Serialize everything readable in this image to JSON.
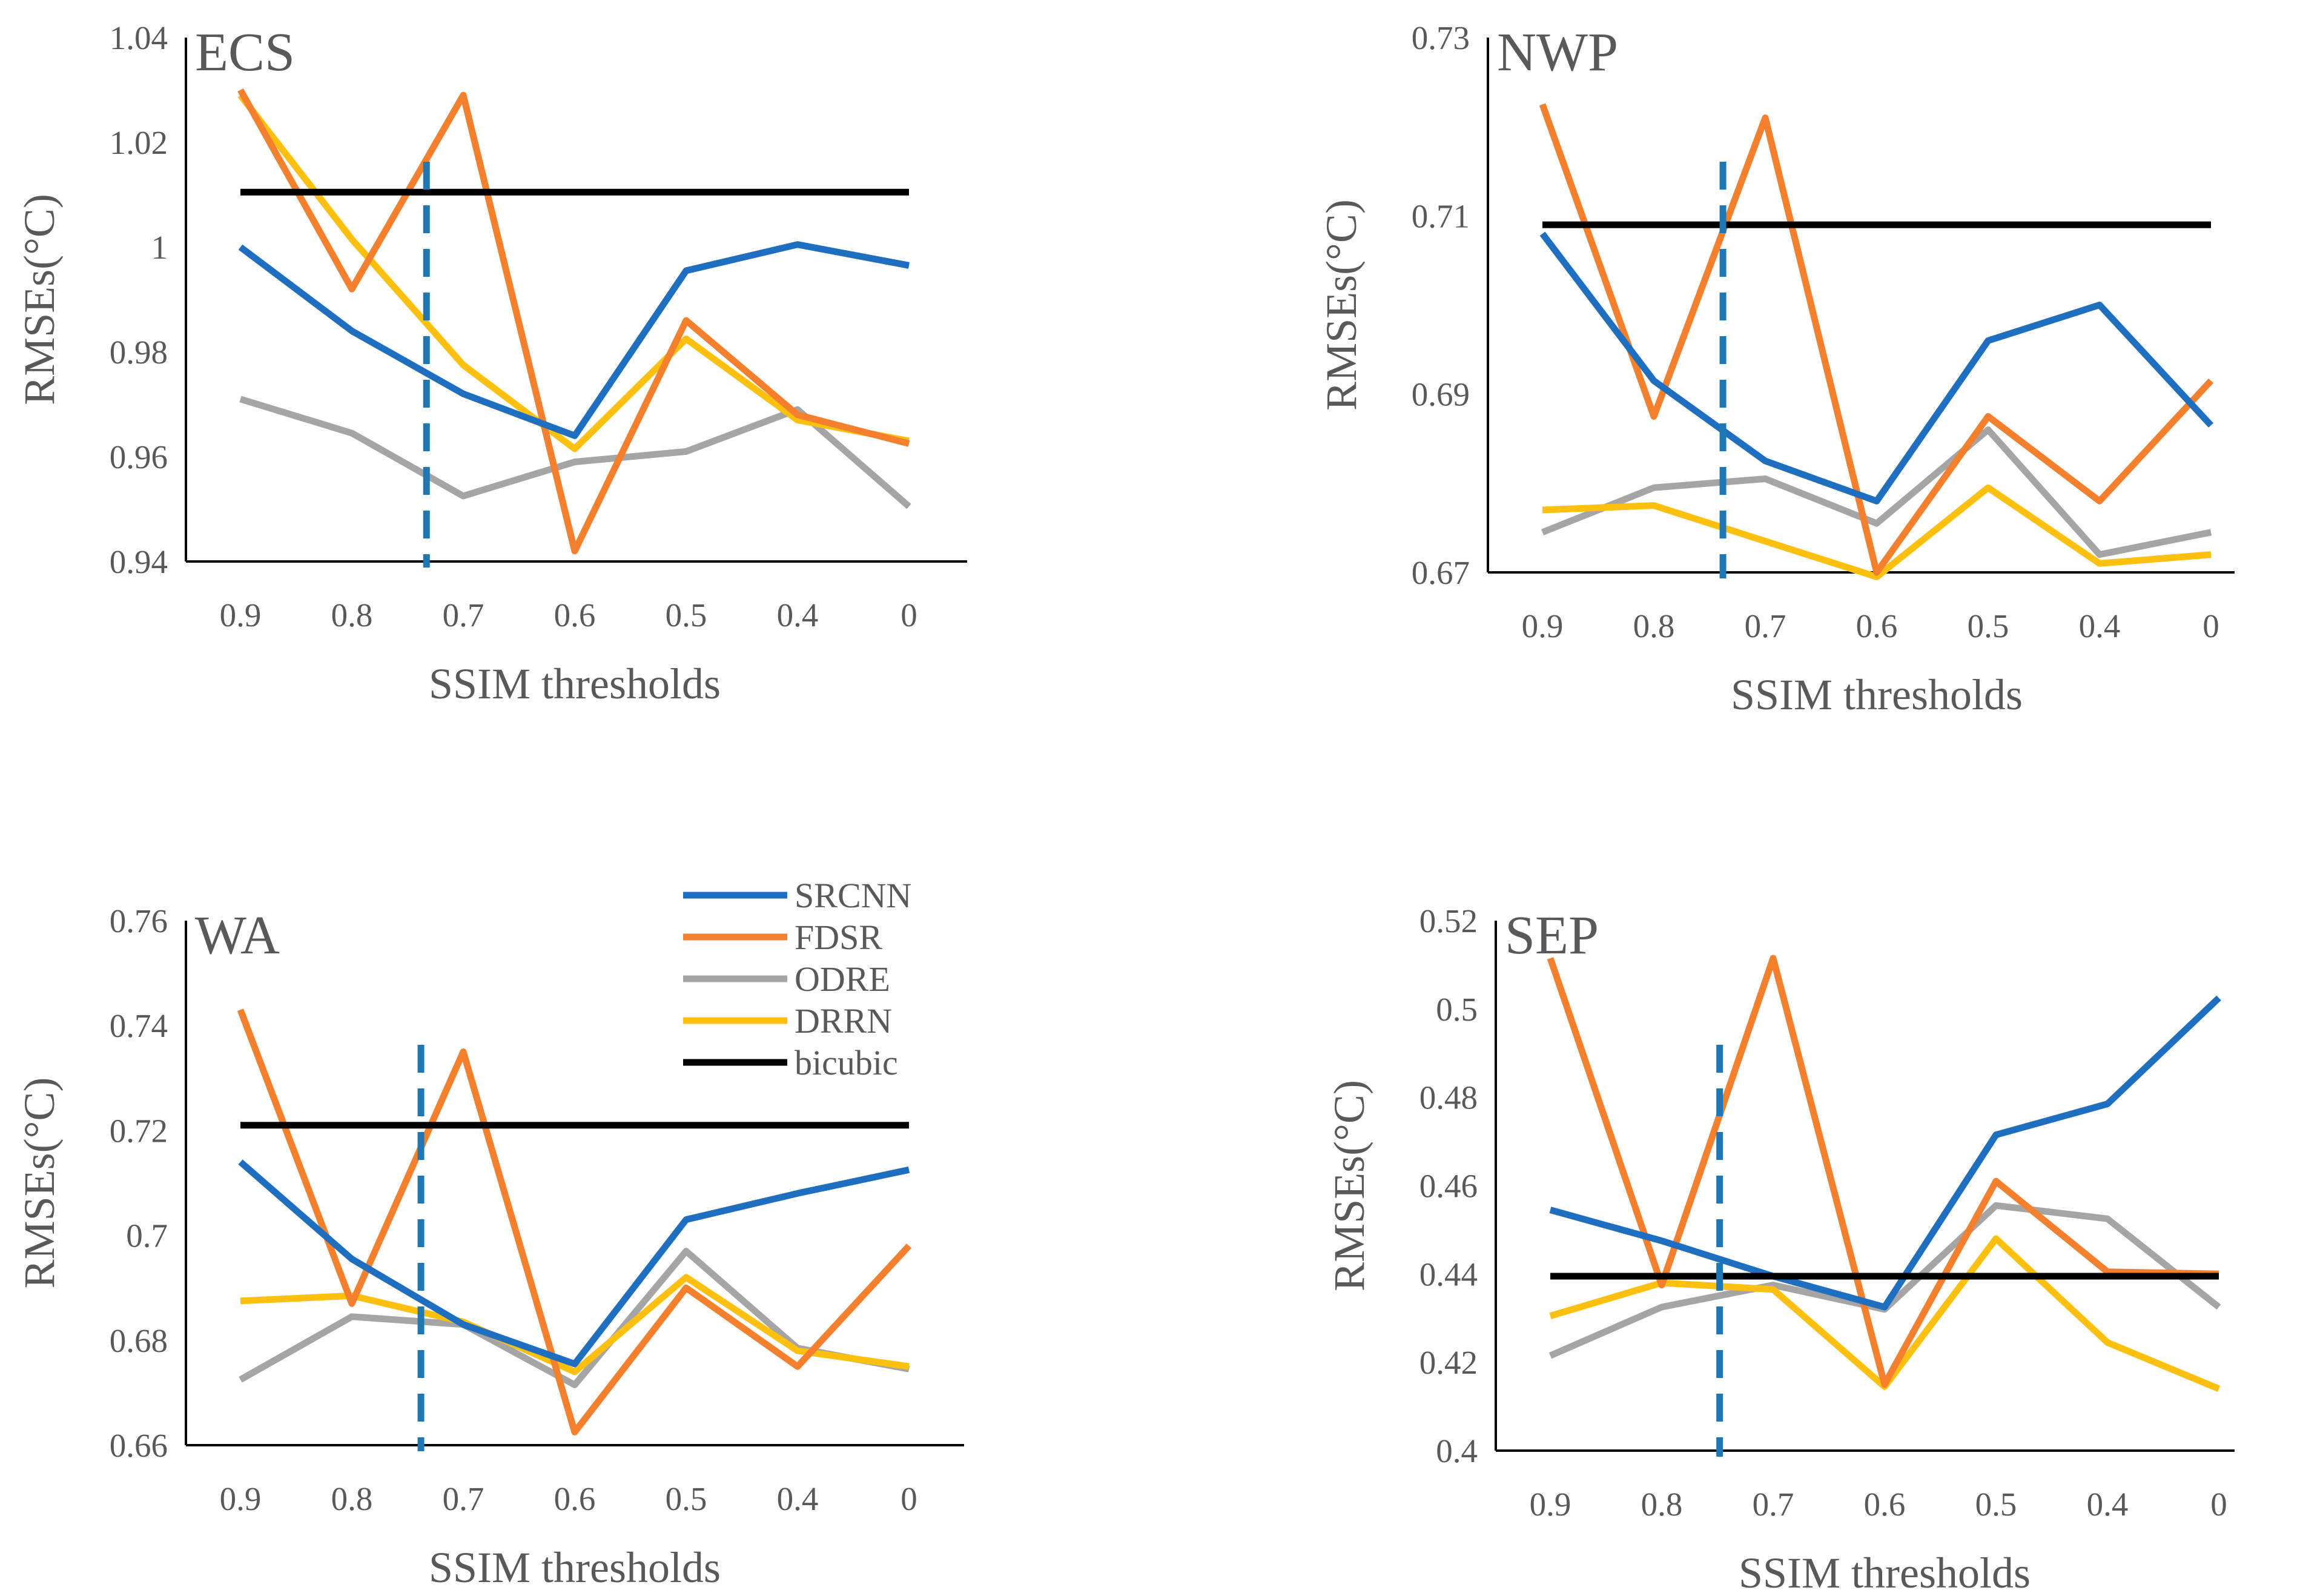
{
  "colors": {
    "SRCNN": "#1f6fc1",
    "FDSR": "#f47f2c",
    "ODRE": "#a5a5a5",
    "DRRN": "#fdc00f",
    "bicubic": "#000000",
    "marker": "#1f77b4"
  },
  "legend": {
    "placement": "inside WA panel, top-right",
    "items": [
      "SRCNN",
      "FDSR",
      "ODRE",
      "DRRN",
      "bicubic"
    ]
  },
  "chart_data": [
    {
      "type": "line",
      "title": "ECS",
      "xlabel": "SSIM thresholds",
      "ylabel": "RMSEs(°C)",
      "categories": [
        "0.9",
        "0.8",
        "0.7",
        "0.6",
        "0.5",
        "0.4",
        "0"
      ],
      "ylim": [
        0.94,
        1.04
      ],
      "yticks": [
        "0.94",
        "0.96",
        "0.98",
        "1",
        "1.02",
        "1.04"
      ],
      "grid": false,
      "marker_x": 1.67,
      "series": [
        {
          "name": "SRCNN",
          "values": [
            1.0,
            0.984,
            0.972,
            0.964,
            0.9955,
            1.0005,
            0.9965
          ]
        },
        {
          "name": "FDSR",
          "values": [
            1.03,
            0.992,
            1.029,
            0.942,
            0.986,
            0.968,
            0.9625
          ]
        },
        {
          "name": "ODRE",
          "values": [
            0.971,
            0.9645,
            0.9525,
            0.959,
            0.961,
            0.969,
            0.9505
          ]
        },
        {
          "name": "DRRN",
          "values": [
            1.029,
            1.0015,
            0.9775,
            0.9615,
            0.9825,
            0.967,
            0.963
          ]
        },
        {
          "name": "bicubic",
          "values": [
            1.0105,
            1.0105,
            1.0105,
            1.0105,
            1.0105,
            1.0105,
            1.0105
          ]
        }
      ]
    },
    {
      "type": "line",
      "title": "NWP",
      "xlabel": "SSIM thresholds",
      "ylabel": "RMSEs(°C)",
      "categories": [
        "0.9",
        "0.8",
        "0.7",
        "0.6",
        "0.5",
        "0.4",
        "0"
      ],
      "ylim": [
        0.67,
        0.73
      ],
      "yticks": [
        "0.67",
        "0.69",
        "0.71",
        "0.73"
      ],
      "grid": false,
      "marker_x": 1.62,
      "series": [
        {
          "name": "SRCNN",
          "values": [
            0.708,
            0.6915,
            0.6825,
            0.678,
            0.696,
            0.7,
            0.6865
          ]
        },
        {
          "name": "FDSR",
          "values": [
            0.7225,
            0.6875,
            0.721,
            0.67,
            0.6875,
            0.678,
            0.6915
          ]
        },
        {
          "name": "ODRE",
          "values": [
            0.6745,
            0.6795,
            0.6805,
            0.6755,
            0.686,
            0.672,
            0.6745
          ]
        },
        {
          "name": "DRRN",
          "values": [
            0.677,
            0.6775,
            0.6735,
            0.6695,
            0.6795,
            0.671,
            0.672
          ]
        },
        {
          "name": "bicubic",
          "values": [
            0.709,
            0.709,
            0.709,
            0.709,
            0.709,
            0.709,
            0.709
          ]
        }
      ]
    },
    {
      "type": "line",
      "title": "WA",
      "xlabel": "SSIM thresholds",
      "ylabel": "RMSEs(°C)",
      "categories": [
        "0.9",
        "0.8",
        "0.7",
        "0.6",
        "0.5",
        "0.4",
        "0"
      ],
      "ylim": [
        0.66,
        0.76
      ],
      "yticks": [
        "0.66",
        "0.68",
        "0.7",
        "0.72",
        "0.74",
        "0.76"
      ],
      "grid": false,
      "marker_x": 1.62,
      "series": [
        {
          "name": "SRCNN",
          "values": [
            0.714,
            0.6955,
            0.683,
            0.6755,
            0.703,
            0.708,
            0.7125
          ]
        },
        {
          "name": "FDSR",
          "values": [
            0.743,
            0.687,
            0.735,
            0.6625,
            0.69,
            0.675,
            0.698
          ]
        },
        {
          "name": "ODRE",
          "values": [
            0.6725,
            0.6845,
            0.683,
            0.6715,
            0.697,
            0.6785,
            0.6745
          ]
        },
        {
          "name": "DRRN",
          "values": [
            0.6875,
            0.6885,
            0.6835,
            0.674,
            0.692,
            0.678,
            0.675
          ]
        },
        {
          "name": "bicubic",
          "values": [
            0.721,
            0.721,
            0.721,
            0.721,
            0.721,
            0.721,
            0.721
          ]
        }
      ]
    },
    {
      "type": "line",
      "title": "SEP",
      "xlabel": "SSIM thresholds",
      "ylabel": "RMSEs(°C)",
      "categories": [
        "0.9",
        "0.8",
        "0.7",
        "0.6",
        "0.5",
        "0.4",
        "0"
      ],
      "ylim": [
        0.4,
        0.52
      ],
      "yticks": [
        "0.4",
        "0.42",
        "0.44",
        "0.46",
        "0.48",
        "0.5",
        "0.52"
      ],
      "grid": false,
      "marker_x": 1.52,
      "series": [
        {
          "name": "SRCNN",
          "values": [
            0.4545,
            0.4475,
            0.4395,
            0.4325,
            0.4715,
            0.4785,
            0.5025
          ]
        },
        {
          "name": "FDSR",
          "values": [
            0.5115,
            0.4375,
            0.5115,
            0.415,
            0.461,
            0.4405,
            0.44
          ]
        },
        {
          "name": "ODRE",
          "values": [
            0.4215,
            0.4325,
            0.4375,
            0.432,
            0.4555,
            0.4525,
            0.4325
          ]
        },
        {
          "name": "DRRN",
          "values": [
            0.4305,
            0.438,
            0.4365,
            0.4145,
            0.448,
            0.4245,
            0.414
          ]
        },
        {
          "name": "bicubic",
          "values": [
            0.4395,
            0.4395,
            0.4395,
            0.4395,
            0.4395,
            0.4395,
            0.4395
          ]
        }
      ]
    }
  ]
}
